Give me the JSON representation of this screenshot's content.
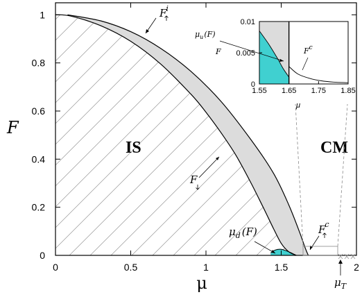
{
  "chart_data": {
    "type": "area",
    "xlabel": "μ",
    "ylabel": "F",
    "xlim": [
      0,
      2
    ],
    "ylim": [
      0,
      1.05
    ],
    "x_ticks": [
      "0",
      "0.5",
      "1",
      "1.5",
      "2"
    ],
    "y_ticks": [
      "0",
      "0.2",
      "0.4",
      "0.6",
      "0.8",
      "1"
    ],
    "regions": [
      "IS",
      "CM"
    ],
    "colors": {
      "grey_region": "#dcdcdc",
      "cyan_region": "#40d0d0",
      "hatch": "#999999"
    },
    "curves": [
      {
        "name": "F↑i",
        "x": [
          0.08,
          0.3,
          0.5,
          0.7,
          0.9,
          1.1,
          1.3,
          1.45,
          1.55,
          1.62,
          1.66,
          1.68
        ],
        "y": [
          1.0,
          0.975,
          0.93,
          0.86,
          0.765,
          0.64,
          0.48,
          0.34,
          0.21,
          0.1,
          0.03,
          0.0
        ]
      },
      {
        "name": "F↓",
        "x": [
          0.0,
          0.1,
          0.3,
          0.5,
          0.7,
          0.9,
          1.0,
          1.1,
          1.2,
          1.3,
          1.38,
          1.45,
          1.5,
          1.55,
          1.6
        ],
        "y": [
          1.0,
          0.995,
          0.955,
          0.89,
          0.795,
          0.67,
          0.595,
          0.51,
          0.415,
          0.3,
          0.2,
          0.11,
          0.05,
          0.015,
          0.0
        ]
      },
      {
        "name": "μd(F)",
        "x": [
          1.43,
          1.46,
          1.5,
          1.55,
          1.6
        ],
        "y": [
          0.01,
          0.022,
          0.025,
          0.015,
          0.0
        ]
      }
    ],
    "labels": {
      "fi_main": "F",
      "fi_main_sup": "i",
      "fdown": "F",
      "mud": "μ",
      "mud_sub": "d",
      "mud_arg": "(F)",
      "fc_main": "F",
      "fc_main_sup": "c",
      "mut": "μ",
      "mut_sub": "T"
    },
    "inset": {
      "xlabel": "μ",
      "ylabel": "F",
      "xlim": [
        1.55,
        1.85
      ],
      "ylim": [
        0,
        0.01
      ],
      "x_ticks": [
        "1.55",
        "1.65",
        "1.75",
        "1.85"
      ],
      "y_ticks": [
        "0",
        "0.005",
        "0.01"
      ],
      "labels": {
        "muu": "μ",
        "muu_sub": "u",
        "muu_arg": "(F)",
        "fc": "F",
        "fc_sup": "c"
      },
      "cyan_boundary": {
        "x": [
          1.55,
          1.58,
          1.61,
          1.63,
          1.65
        ],
        "y": [
          0.0085,
          0.0065,
          0.0042,
          0.0025,
          0.0011
        ]
      },
      "fc_curve": {
        "x": [
          1.65,
          1.68,
          1.72,
          1.76,
          1.8,
          1.85
        ],
        "y": [
          0.0028,
          0.0016,
          0.0009,
          0.0005,
          0.0003,
          0.0002
        ]
      },
      "vertical_line_x": 1.65
    },
    "grid": false,
    "legend": "none"
  }
}
